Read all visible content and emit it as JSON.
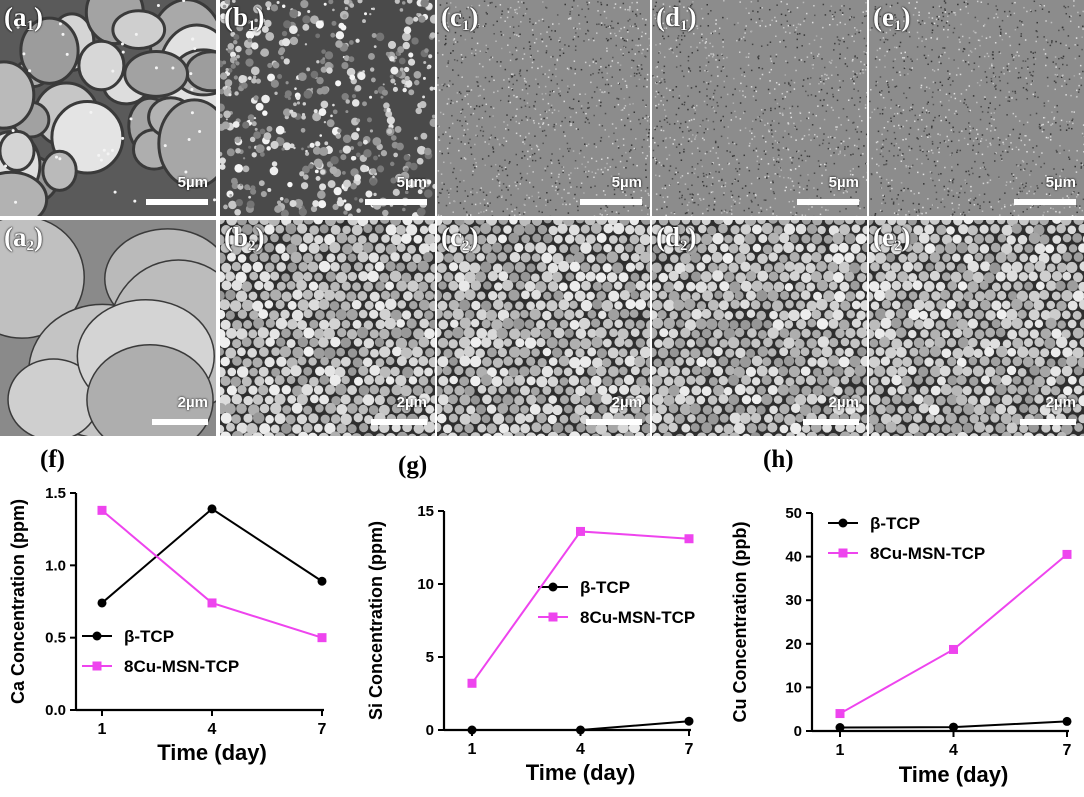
{
  "panels_top": [
    {
      "id": "a",
      "sub": "1",
      "scale": "5µm"
    },
    {
      "id": "b",
      "sub": "1",
      "scale": "5µm"
    },
    {
      "id": "c",
      "sub": "1",
      "scale": "5µm"
    },
    {
      "id": "d",
      "sub": "1",
      "scale": "5µm"
    },
    {
      "id": "e",
      "sub": "1",
      "scale": "5µm"
    }
  ],
  "panels_bottom": [
    {
      "id": "a",
      "sub": "2",
      "scale": "2µm"
    },
    {
      "id": "b",
      "sub": "2",
      "scale": "2µm"
    },
    {
      "id": "c",
      "sub": "2",
      "scale": "2µm"
    },
    {
      "id": "d",
      "sub": "2",
      "scale": "2µm"
    },
    {
      "id": "e",
      "sub": "2",
      "scale": "2µm"
    }
  ],
  "chart_labels": {
    "f": "(f)",
    "g": "(g)",
    "h": "(h)"
  },
  "chart_data": [
    {
      "type": "line",
      "ylabel": "Ca Concentration (ppm)",
      "xlabel": "Time (day)",
      "x": [
        1,
        4,
        7
      ],
      "xticks": [
        "1",
        "4",
        "7"
      ],
      "ylim": [
        0,
        1.5
      ],
      "yticks": [
        "0.0",
        "0.5",
        "1.0",
        "1.5"
      ],
      "legend_position": "bottom-left",
      "series": [
        {
          "name": "β-TCP",
          "values": [
            0.74,
            1.39,
            0.89
          ],
          "color": "#000000",
          "marker": "circle"
        },
        {
          "name": "8Cu-MSN-TCP",
          "values": [
            1.38,
            0.74,
            0.5
          ],
          "color": "#ee44ee",
          "marker": "square"
        }
      ]
    },
    {
      "type": "line",
      "ylabel": "Si Concentration (ppm)",
      "xlabel": "Time (day)",
      "x": [
        1,
        4,
        7
      ],
      "xticks": [
        "1",
        "4",
        "7"
      ],
      "ylim": [
        0,
        15
      ],
      "yticks": [
        "0",
        "5",
        "10",
        "15"
      ],
      "legend_position": "center-right",
      "series": [
        {
          "name": "β-TCP",
          "values": [
            0.0,
            0.0,
            0.6
          ],
          "color": "#000000",
          "marker": "circle"
        },
        {
          "name": "8Cu-MSN-TCP",
          "values": [
            3.2,
            13.6,
            13.1
          ],
          "color": "#ee44ee",
          "marker": "square"
        }
      ]
    },
    {
      "type": "line",
      "ylabel": "Cu Concentration (ppb)",
      "xlabel": "Time (day)",
      "x": [
        1,
        4,
        7
      ],
      "xticks": [
        "1",
        "4",
        "7"
      ],
      "ylim": [
        0,
        50
      ],
      "yticks": [
        "0",
        "10",
        "20",
        "30",
        "40",
        "50"
      ],
      "legend_position": "top-left",
      "series": [
        {
          "name": "β-TCP",
          "values": [
            0.8,
            0.9,
            2.2
          ],
          "color": "#000000",
          "marker": "circle"
        },
        {
          "name": "8Cu-MSN-TCP",
          "values": [
            4.0,
            18.7,
            40.5
          ],
          "color": "#ee44ee",
          "marker": "square"
        }
      ]
    }
  ]
}
